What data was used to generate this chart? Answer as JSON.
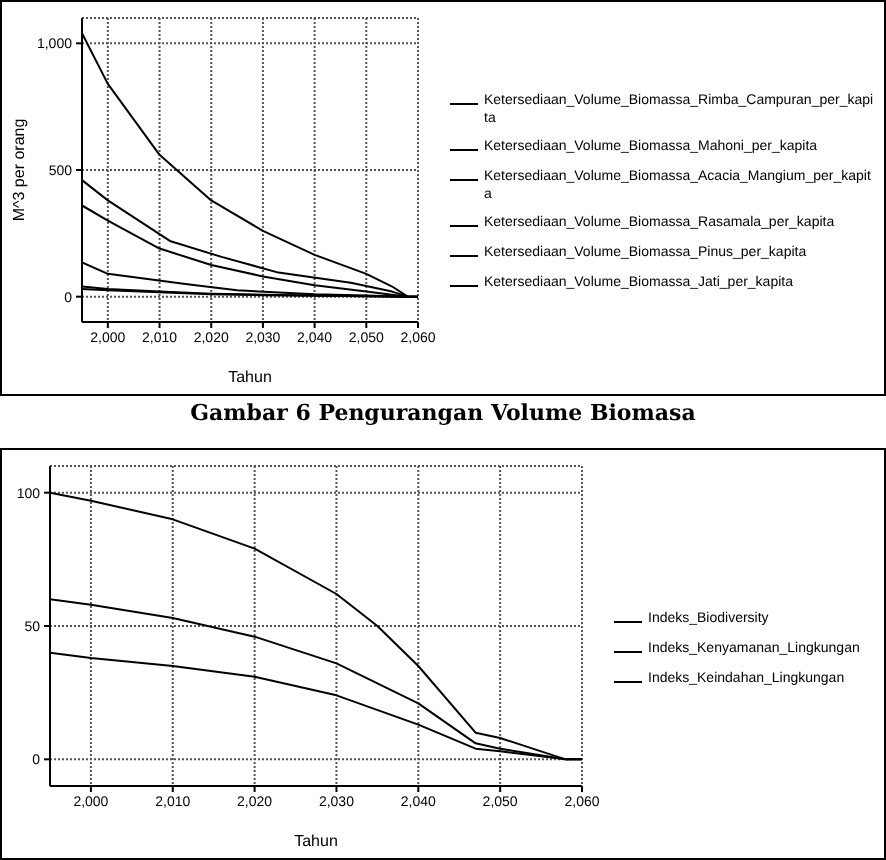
{
  "chart_data": [
    {
      "type": "line",
      "ylabel": "M^3 per orang",
      "xlabel": "Tahun",
      "xlim": [
        1995,
        2060
      ],
      "xticks": [
        {
          "value": 2000,
          "label": "2,000"
        },
        {
          "value": 2010,
          "label": "2,010"
        },
        {
          "value": 2020,
          "label": "2,020"
        },
        {
          "value": 2030,
          "label": "2,030"
        },
        {
          "value": 2040,
          "label": "2,040"
        },
        {
          "value": 2050,
          "label": "2,050"
        },
        {
          "value": 2060,
          "label": "2,060"
        }
      ],
      "ylim": [
        -100,
        1100
      ],
      "yticks": [
        0,
        500,
        {
          "value": 1000,
          "label": "1,000"
        }
      ],
      "grid": true,
      "legend": "right",
      "marker": "none",
      "line_style": "solid",
      "annotations": [
        "Gambar 6 Pengurangan Volume Biomasa"
      ],
      "series": [
        {
          "name": "Ketersediaan_Volume_Biomassa_Rimba_Campuran_per_kapita",
          "color": "#000000",
          "x": [
            1995,
            2000,
            2010,
            2020,
            2030,
            2040,
            2050,
            2055,
            2058,
            2060
          ],
          "values": [
            1040,
            840,
            560,
            380,
            260,
            165,
            90,
            40,
            0,
            0
          ]
        },
        {
          "name": "Ketersediaan_Volume_Biomassa_Mahoni_per_kapita",
          "color": "#000000",
          "x": [
            1995,
            2000,
            2010,
            2020,
            2030,
            2040,
            2050,
            2058,
            2060
          ],
          "values": [
            40,
            30,
            20,
            12,
            8,
            5,
            2,
            0,
            0
          ]
        },
        {
          "name": "Ketersediaan_Volume_Biomassa_Acacia_Mangium_per_kapita",
          "color": "#000000",
          "x": [
            1995,
            2000,
            2010,
            2020,
            2030,
            2040,
            2050,
            2057
          ],
          "values": [
            30,
            25,
            17,
            10,
            6,
            4,
            2,
            0
          ]
        },
        {
          "name": "Ketersediaan_Volume_Biomassa_Rasamala_per_kapita",
          "color": "#000000",
          "x": [
            1995,
            2000,
            2010,
            2020,
            2030,
            2040,
            2050,
            2058,
            2060
          ],
          "values": [
            360,
            300,
            190,
            125,
            80,
            45,
            20,
            0,
            0
          ]
        },
        {
          "name": "Ketersediaan_Volume_Biomassa_Pinus_per_kapita",
          "color": "#000000",
          "x": [
            1995,
            2000,
            2012,
            2022,
            2033,
            2047,
            2055,
            2058,
            2060
          ],
          "values": [
            460,
            380,
            220,
            157,
            95,
            55,
            20,
            0,
            0
          ]
        },
        {
          "name": "Ketersediaan_Volume_Biomassa_Jati_per_kapita",
          "color": "#000000",
          "x": [
            1995,
            2000,
            2015,
            2025,
            2040,
            2050,
            2058,
            2060
          ],
          "values": [
            135,
            90,
            50,
            25,
            10,
            5,
            0,
            0
          ]
        }
      ]
    },
    {
      "type": "line",
      "xlabel": "Tahun",
      "xlim": [
        1995,
        2060
      ],
      "xticks": [
        {
          "value": 2000,
          "label": "2,000"
        },
        {
          "value": 2010,
          "label": "2,010"
        },
        {
          "value": 2020,
          "label": "2,020"
        },
        {
          "value": 2030,
          "label": "2,030"
        },
        {
          "value": 2040,
          "label": "2,040"
        },
        {
          "value": 2050,
          "label": "2,050"
        },
        {
          "value": 2060,
          "label": "2,060"
        }
      ],
      "ylim": [
        -10,
        110
      ],
      "yticks": [
        0,
        50,
        100
      ],
      "grid": true,
      "legend": "right",
      "marker": "none",
      "line_style": "solid",
      "series": [
        {
          "name": "Indeks_Biodiversity",
          "color": "#000000",
          "x": [
            1995,
            2000,
            2010,
            2020,
            2030,
            2035,
            2040,
            2047,
            2050,
            2055,
            2058,
            2060
          ],
          "values": [
            100,
            97,
            90,
            79,
            62,
            50,
            35,
            10,
            8,
            3,
            0,
            0
          ]
        },
        {
          "name": "Indeks_Kenyamanan_Lingkungan",
          "color": "#000000",
          "x": [
            1995,
            2000,
            2010,
            2020,
            2030,
            2040,
            2047,
            2050,
            2058,
            2060
          ],
          "values": [
            60,
            58,
            53,
            46,
            36,
            21,
            6,
            4,
            0,
            0
          ]
        },
        {
          "name": "Indeks_Keindahan_Lingkungan",
          "color": "#000000",
          "x": [
            1995,
            2000,
            2010,
            2020,
            2030,
            2040,
            2047,
            2050,
            2058,
            2060
          ],
          "values": [
            40,
            38,
            35,
            31,
            24,
            13,
            4,
            3,
            0,
            0
          ]
        }
      ]
    }
  ]
}
